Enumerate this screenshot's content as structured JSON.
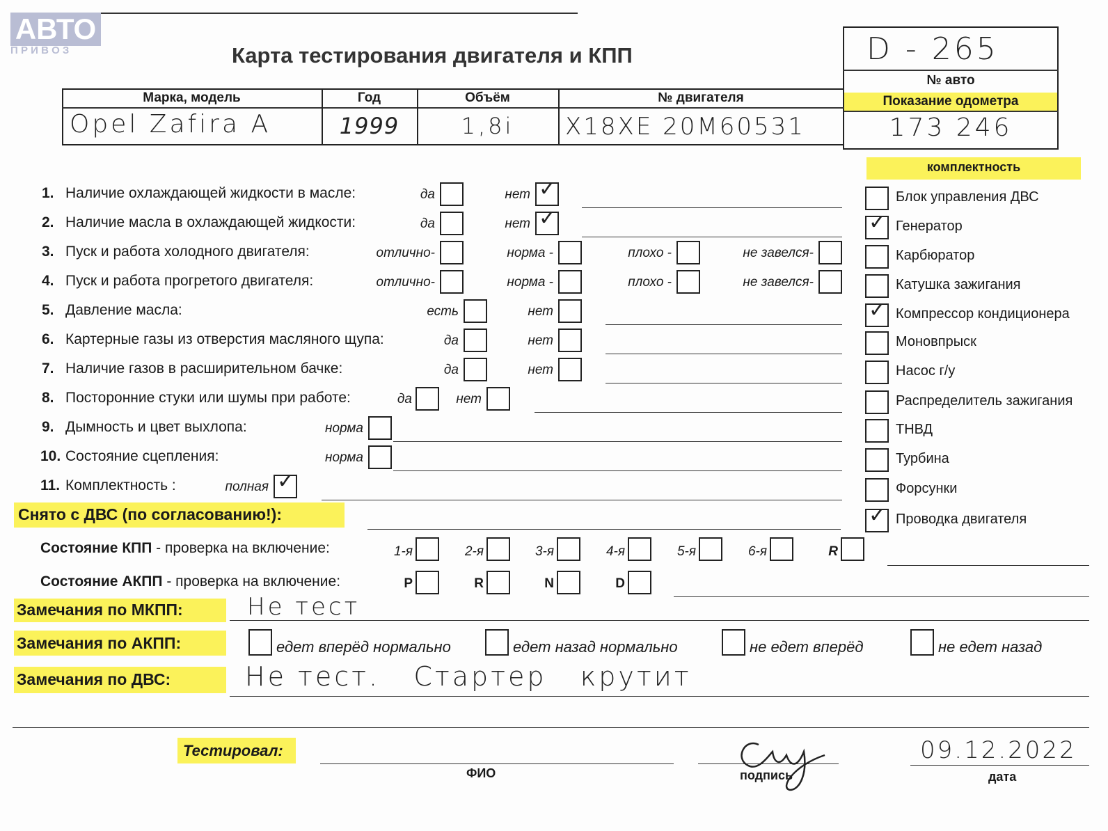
{
  "logo": {
    "main": "АВТО",
    "sub": "П Р И В О З"
  },
  "title": "Карта тестирования двигателя  и КПП",
  "car_number": {
    "value": "D - 265",
    "label": "№ авто"
  },
  "odometer": {
    "label": "Показание одометра",
    "value": "173 246"
  },
  "vehicle_table": {
    "headers": [
      "Марка, модель",
      "Год",
      "Объём",
      "№ двигателя"
    ],
    "values": [
      "Opel  Zafira A",
      "1999",
      "1,8i",
      "X18XE 20M60531"
    ]
  },
  "completeness": {
    "title": "комплектность",
    "items": [
      {
        "label": "Блок управления ДВС",
        "checked": false
      },
      {
        "label": "Генератор",
        "checked": true
      },
      {
        "label": "Карбюратор",
        "checked": false
      },
      {
        "label": "Катушка зажигания",
        "checked": false
      },
      {
        "label": "Компрессор кондиционера",
        "checked": true
      },
      {
        "label": "Моновпрыск",
        "checked": false
      },
      {
        "label": "Насос г/у",
        "checked": false
      },
      {
        "label": "Распределитель зажигания",
        "checked": false
      },
      {
        "label": "ТНВД",
        "checked": false
      },
      {
        "label": "Турбина",
        "checked": false
      },
      {
        "label": "Форсунки",
        "checked": false
      },
      {
        "label": "Проводка двигателя",
        "checked": true
      }
    ]
  },
  "checks": [
    {
      "num": "1.",
      "text": "Наличие охлаждающей жидкости в масле:",
      "options": [
        {
          "label": "да",
          "checked": false
        },
        {
          "label": "нет",
          "checked": true
        }
      ]
    },
    {
      "num": "2.",
      "text": "Наличие масла в охлаждающей жидкости:",
      "options": [
        {
          "label": "да",
          "checked": false
        },
        {
          "label": "нет",
          "checked": true
        }
      ]
    },
    {
      "num": "3.",
      "text": "Пуск и работа холодного двигателя:",
      "options": [
        {
          "label": "отлично-",
          "checked": false
        },
        {
          "label": "норма -",
          "checked": false
        },
        {
          "label": "плохо -",
          "checked": false
        },
        {
          "label": "не завелся-",
          "checked": false
        }
      ]
    },
    {
      "num": "4.",
      "text": "Пуск и работа прогретого двигателя:",
      "options": [
        {
          "label": "отлично-",
          "checked": false
        },
        {
          "label": "норма -",
          "checked": false
        },
        {
          "label": "плохо -",
          "checked": false
        },
        {
          "label": "не завелся-",
          "checked": false
        }
      ]
    },
    {
      "num": "5.",
      "text": "Давление масла:",
      "options": [
        {
          "label": "есть",
          "checked": false
        },
        {
          "label": "нет",
          "checked": false
        }
      ]
    },
    {
      "num": "6.",
      "text": "Картерные газы из отверстия масляного щупа:",
      "options": [
        {
          "label": "да",
          "checked": false
        },
        {
          "label": "нет",
          "checked": false
        }
      ]
    },
    {
      "num": "7.",
      "text": "Наличие газов в расширительном бачке:",
      "options": [
        {
          "label": "да",
          "checked": false
        },
        {
          "label": "нет",
          "checked": false
        }
      ]
    },
    {
      "num": "8.",
      "text": "Посторонние стуки или шумы при работе:",
      "options": [
        {
          "label": "да",
          "checked": false
        },
        {
          "label": "нет",
          "checked": false
        }
      ]
    },
    {
      "num": "9.",
      "text": "Дымность и цвет выхлопа:",
      "options": [
        {
          "label": "норма",
          "checked": false
        }
      ]
    },
    {
      "num": "10.",
      "text": "Состояние сцепления:",
      "options": [
        {
          "label": "норма",
          "checked": false
        }
      ]
    },
    {
      "num": "11.",
      "text": "Комплектность :",
      "options": [
        {
          "label": "полная",
          "checked": true
        }
      ]
    }
  ],
  "removed": {
    "label": "Снято с ДВС (по согласованию!):"
  },
  "kpp": {
    "label_bold": "Состояние КПП",
    "label_rest": " - проверка на включение:",
    "gears": [
      "1-я",
      "2-я",
      "3-я",
      "4-я",
      "5-я",
      "6-я",
      "R"
    ]
  },
  "akpp": {
    "label_bold": "Состояние АКПП",
    "label_rest": " - проверка на включение:",
    "gears": [
      "P",
      "R",
      "N",
      "D"
    ]
  },
  "remarks": {
    "mkpp": {
      "label": "Замечания по МКПП:",
      "value": "Не тест"
    },
    "akpp": {
      "label": "Замечания по АКПП:",
      "options": [
        "едет вперёд нормально",
        "едет назад нормально",
        "не едет вперёд",
        "не едет назад"
      ]
    },
    "dvs": {
      "label": "Замечания по ДВС:",
      "value": "Не тест.   Стартер   крутит"
    }
  },
  "footer": {
    "tested_by": "Тестировал:",
    "name_label": "ФИО",
    "signature_label": "подпись",
    "date_label": "дата",
    "date_value": "09.12.2022"
  }
}
